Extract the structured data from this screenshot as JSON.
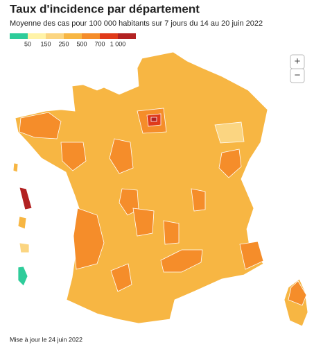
{
  "header": {
    "title": "Taux d'incidence par département",
    "subtitle": "Moyenne des cas pour 100 000 habitants sur 7 jours du 14 au 20 juin 2022"
  },
  "legend": {
    "colors": [
      "#2ecc9a",
      "#fff3a8",
      "#fbd581",
      "#f7b643",
      "#f58d2a",
      "#e03a1a",
      "#b22222"
    ],
    "thresholds": [
      50,
      150,
      250,
      500,
      700,
      {
        "value": 1000,
        "label": "1 000"
      }
    ]
  },
  "controls": {
    "zoom_in": "+",
    "zoom_out": "−"
  },
  "footer": "Mise à jour le 24 juin 2022"
}
